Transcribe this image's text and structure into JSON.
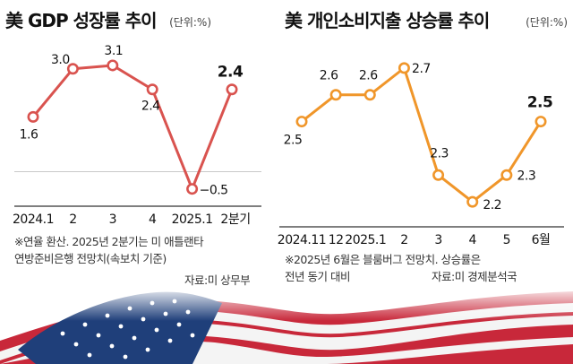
{
  "left": {
    "title": "美 GDP 성장률 추이",
    "unit": "(단위:%)",
    "note": [
      "※연율 환산. 2025년 2분기는 미 애틀랜타",
      "연방준비은행 전망치(속보치 기준)"
    ],
    "source": "자료:미 상무부"
  },
  "right": {
    "title": "美 개인소비지출 상승률 추이",
    "unit": "(단위:%)",
    "note": [
      "※2025년 6월은 블룸버그 전망치. 상승률은",
      "전년 동기 대비"
    ],
    "source": "자료:미 경제분석국"
  },
  "colors": {
    "left_line": "#d9534f",
    "right_line": "#f0962a",
    "bg": "#ffffff"
  },
  "chart_data": [
    {
      "type": "line",
      "categories": [
        "2024.1",
        "2",
        "3",
        "4",
        "2025.1",
        "2분기"
      ],
      "values": [
        1.6,
        3.0,
        3.1,
        2.4,
        -0.5,
        2.4
      ],
      "value_labels": [
        "1.6",
        "3.0",
        "3.1",
        "2.4",
        "−0.5",
        "2.4"
      ],
      "highlight_last": true,
      "zero_line": true,
      "ylim": [
        -0.9,
        3.7
      ]
    },
    {
      "type": "line",
      "categories": [
        "2024.11",
        "12",
        "2025.1",
        "2",
        "3",
        "4",
        "5",
        "6월"
      ],
      "values": [
        2.5,
        2.6,
        2.6,
        2.7,
        2.3,
        2.2,
        2.3,
        2.5
      ],
      "value_labels": [
        "2.5",
        "2.6",
        "2.6",
        "2.7",
        "2.3",
        "2.2",
        "2.3",
        "2.5"
      ],
      "highlight_last": true,
      "ylim": [
        2.13,
        2.78
      ]
    }
  ]
}
